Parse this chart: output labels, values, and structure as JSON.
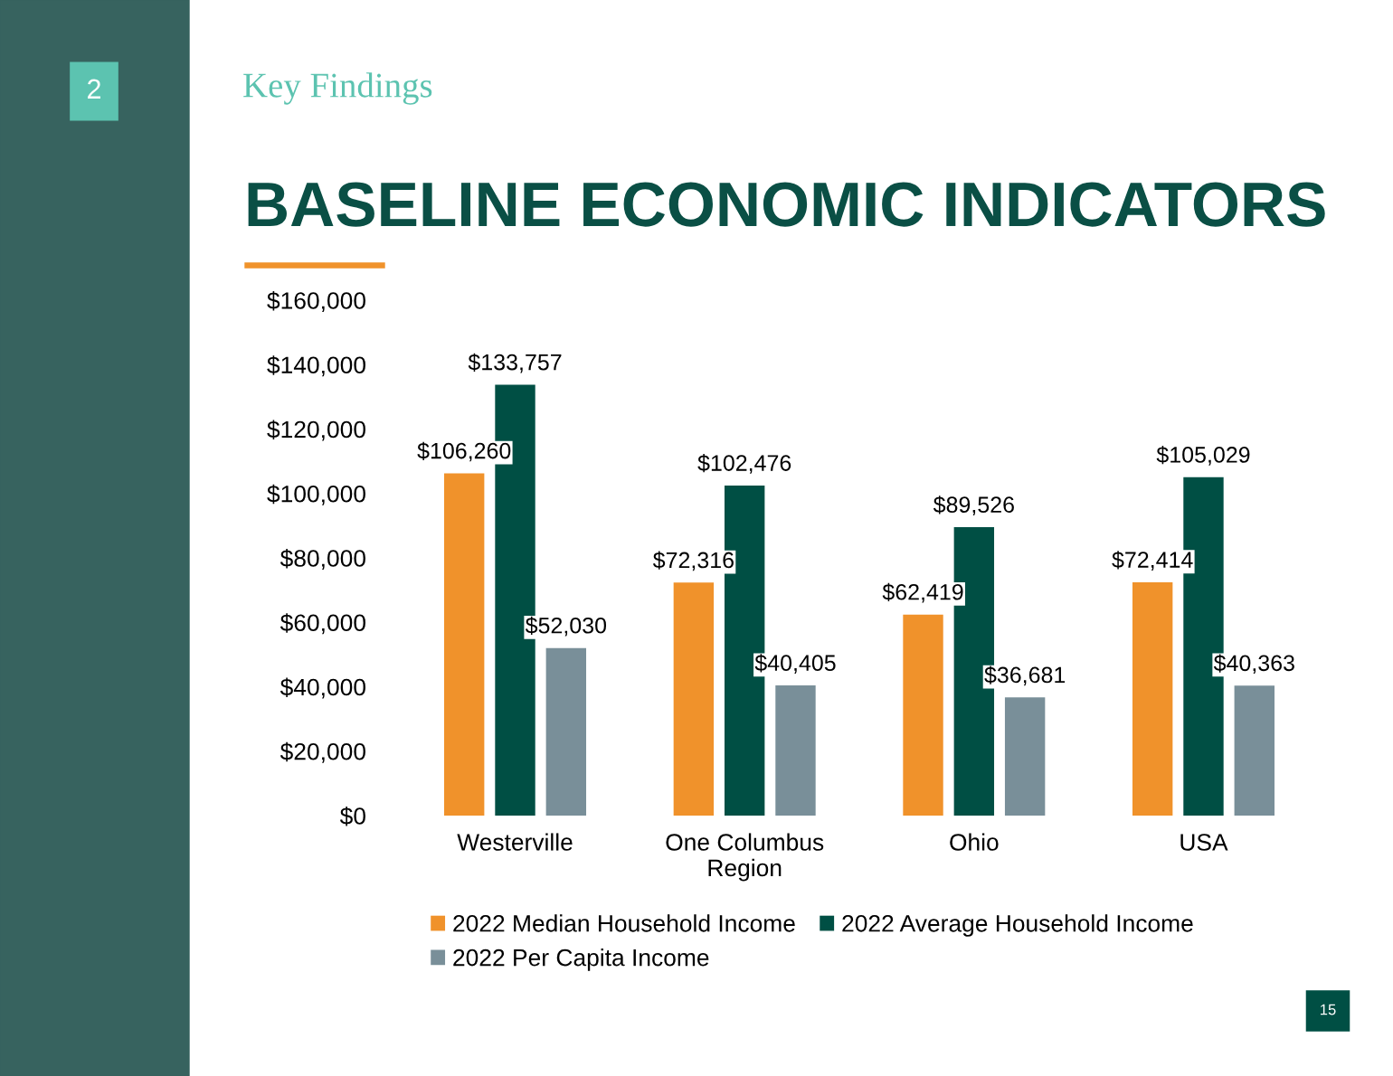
{
  "chart_data": {
    "type": "bar",
    "title": "BASELINE ECONOMIC INDICATORS",
    "subtitle": "Key Findings",
    "annotations": [
      "2",
      "15"
    ],
    "categories": [
      "Westerville",
      "One Columbus\nRegion",
      "Ohio",
      "USA"
    ],
    "series": [
      {
        "name": "2022 Median Household Income",
        "color": "#f0922b",
        "values": [
          106260,
          72316,
          62419,
          72414
        ],
        "value_labels": [
          "$106,260",
          "$72,316",
          "$62,419",
          "$72,414"
        ]
      },
      {
        "name": "2022 Average Household Income",
        "color": "#004f44",
        "values": [
          133757,
          102476,
          89526,
          105029
        ],
        "value_labels": [
          "$133,757",
          "$102,476",
          "$89,526",
          "$105,029"
        ]
      },
      {
        "name": "2022 Per Capita Income",
        "color": "#798f99",
        "values": [
          52030,
          40405,
          36681,
          40363
        ],
        "value_labels": [
          "$52,030",
          "$40,405",
          "$36,681",
          "$40,363"
        ]
      }
    ],
    "ylim": [
      0,
      160000
    ],
    "yticks": [
      {
        "value": 0,
        "label": "$0"
      },
      {
        "value": 20000,
        "label": "$20,000"
      },
      {
        "value": 40000,
        "label": "$40,000"
      },
      {
        "value": 60000,
        "label": "$60,000"
      },
      {
        "value": 80000,
        "label": "$80,000"
      },
      {
        "value": 100000,
        "label": "$100,000"
      },
      {
        "value": 120000,
        "label": "$120,000"
      },
      {
        "value": 140000,
        "label": "$140,000"
      },
      {
        "value": 160000,
        "label": "$160,000"
      }
    ],
    "grid": false,
    "legend": "bottom"
  }
}
